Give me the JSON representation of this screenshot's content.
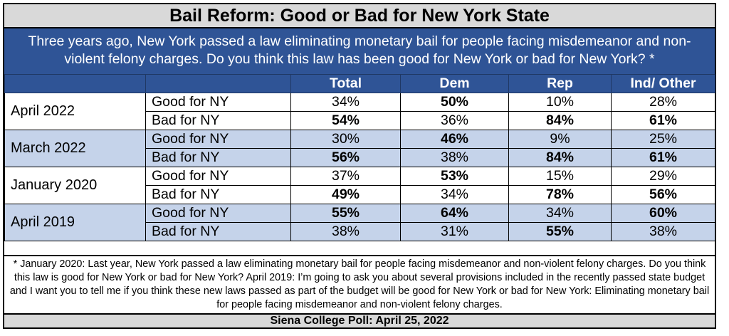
{
  "title": "Bail Reform: Good or Bad for New York State",
  "question": "Three years ago, New York passed a law eliminating monetary bail for people facing misdemeanor and non-violent felony charges. Do you think this law has been good for New York or bad for New York? *",
  "colors": {
    "header_blue": "#2f5496",
    "shade_blue": "#c5d3ea",
    "title_gray": "#d9d9d9"
  },
  "chart_data": {
    "type": "table",
    "title": "Bail Reform: Good or Bad for New York State",
    "columns": [
      "Total",
      "Dem",
      "Rep",
      "Ind/ Other"
    ],
    "groups": [
      {
        "period": "April 2022",
        "rows": [
          {
            "response": "Good for NY",
            "values": [
              "34%",
              "50%",
              "10%",
              "28%"
            ],
            "bold": [
              false,
              true,
              false,
              false
            ]
          },
          {
            "response": "Bad for NY",
            "values": [
              "54%",
              "36%",
              "84%",
              "61%"
            ],
            "bold": [
              true,
              false,
              true,
              true
            ]
          }
        ]
      },
      {
        "period": "March 2022",
        "rows": [
          {
            "response": "Good for NY",
            "values": [
              "30%",
              "46%",
              "9%",
              "25%"
            ],
            "bold": [
              false,
              true,
              false,
              false
            ]
          },
          {
            "response": "Bad for NY",
            "values": [
              "56%",
              "38%",
              "84%",
              "61%"
            ],
            "bold": [
              true,
              false,
              true,
              true
            ]
          }
        ]
      },
      {
        "period": "January 2020",
        "rows": [
          {
            "response": "Good for NY",
            "values": [
              "37%",
              "53%",
              "15%",
              "29%"
            ],
            "bold": [
              false,
              true,
              false,
              false
            ]
          },
          {
            "response": "Bad for NY",
            "values": [
              "49%",
              "34%",
              "78%",
              "56%"
            ],
            "bold": [
              true,
              false,
              true,
              true
            ]
          }
        ]
      },
      {
        "period": "April 2019",
        "rows": [
          {
            "response": "Good for NY",
            "values": [
              "55%",
              "64%",
              "34%",
              "60%"
            ],
            "bold": [
              true,
              true,
              false,
              true
            ]
          },
          {
            "response": "Bad for NY",
            "values": [
              "38%",
              "31%",
              "55%",
              "38%"
            ],
            "bold": [
              false,
              false,
              true,
              false
            ]
          }
        ]
      }
    ]
  },
  "footnote": "* January 2020: Last year, New York passed a law eliminating monetary bail for people facing misdemeanor and non-violent felony charges. Do you think this law is good for New York or bad for New York? April 2019: I’m going to ask you about several provisions included in the recently passed state budget and I want you to tell me if you think these new laws passed as part of the budget will be good for New York or bad for New York: Eliminating monetary bail for people facing misdemeanor and non-violent felony charges.",
  "source": "Siena College Poll: April 25, 2022"
}
